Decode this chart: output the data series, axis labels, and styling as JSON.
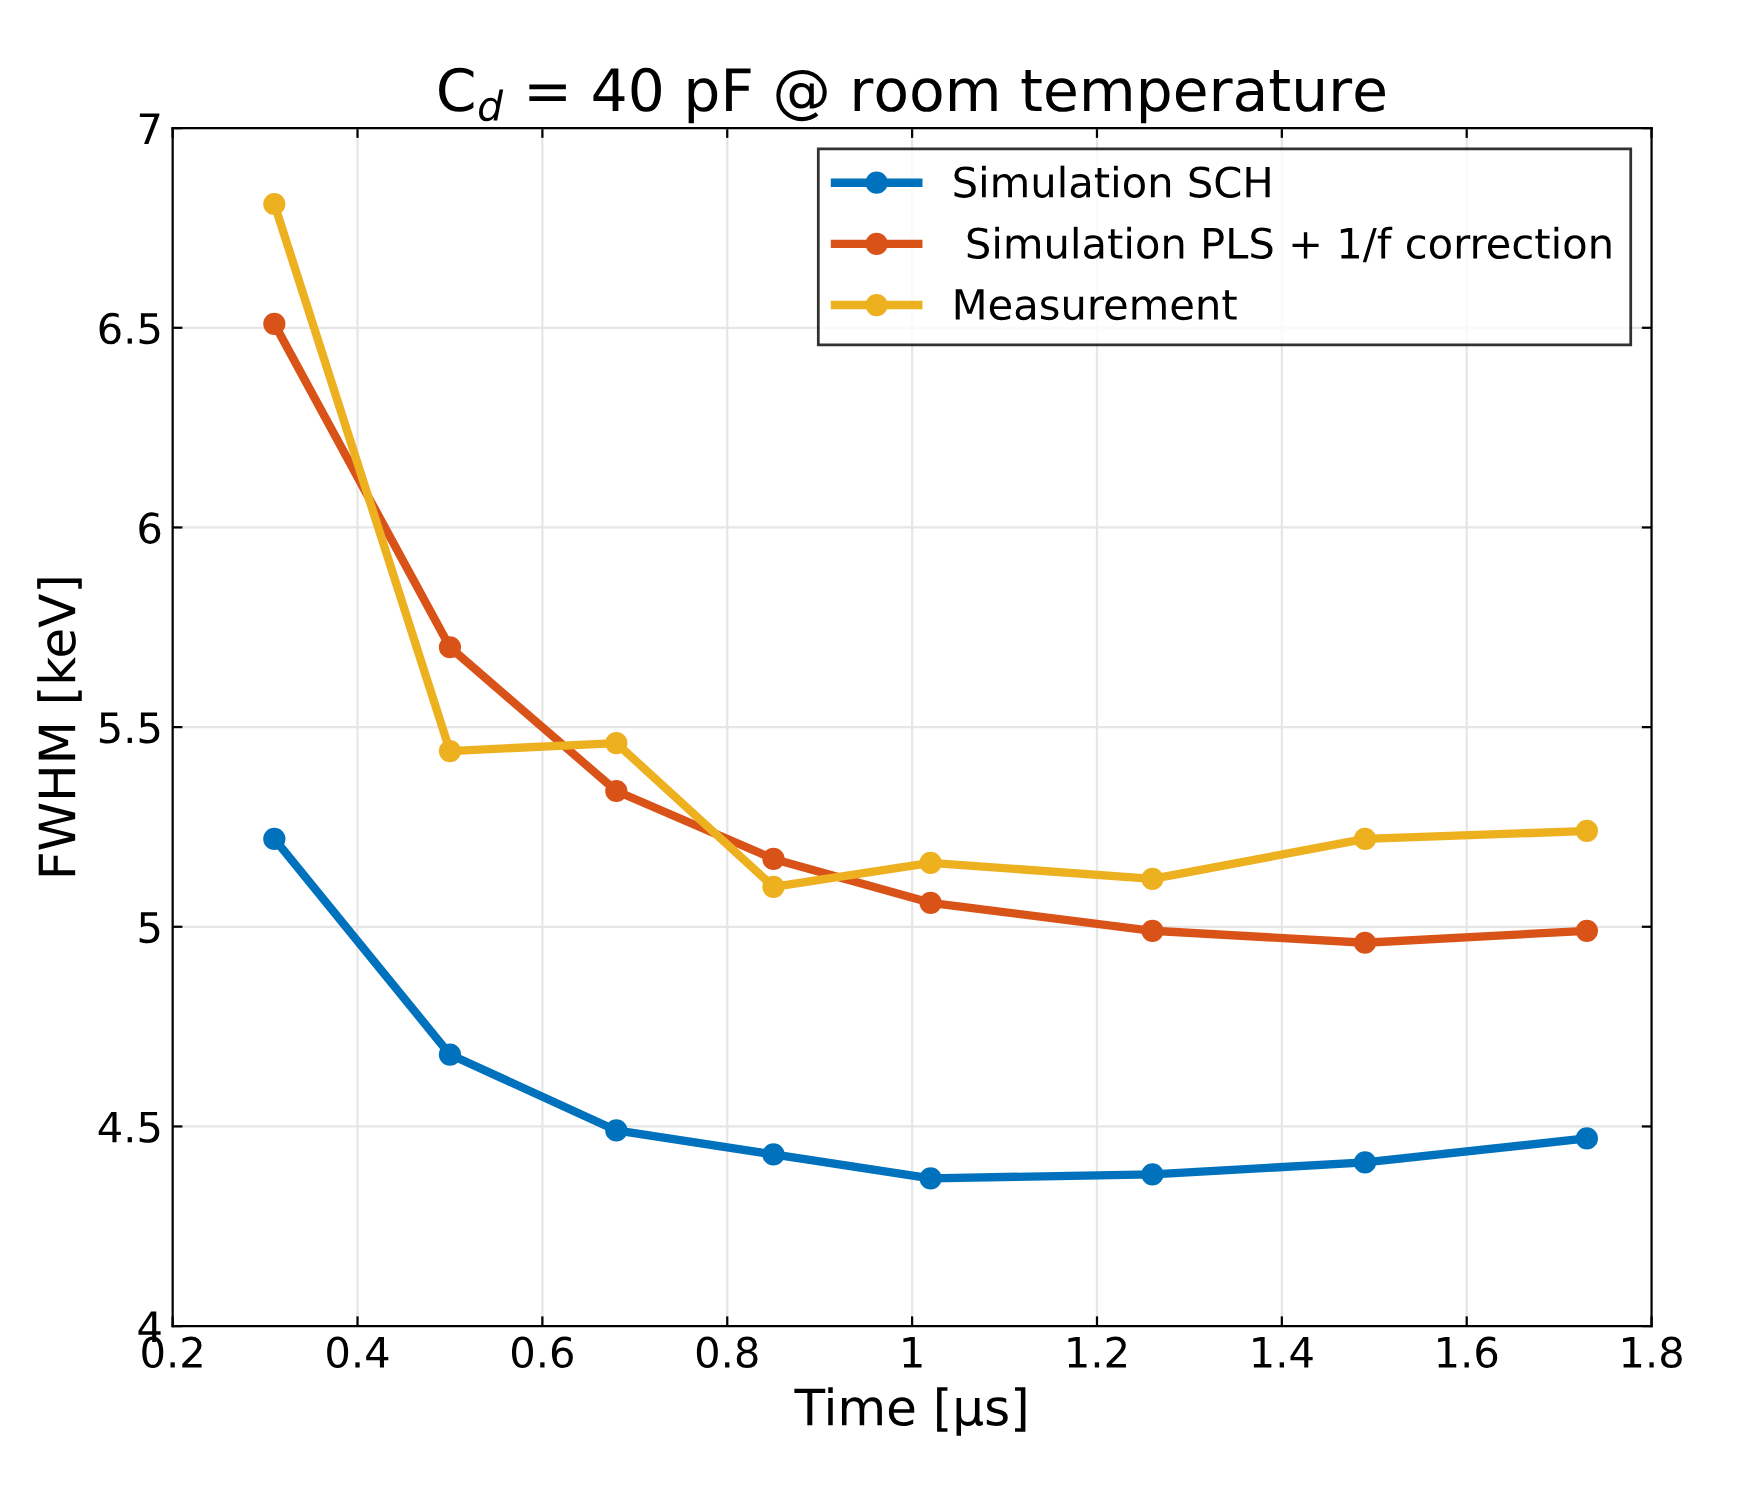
{
  "chart_data": {
    "type": "line",
    "title": "C$_{d}$ = 40 pF @ room temperature",
    "xlabel": "Time [μs]",
    "ylabel": "FWHM [keV]",
    "x": [
      0.31,
      0.5,
      0.68,
      0.85,
      1.02,
      1.26,
      1.49,
      1.73
    ],
    "series": [
      {
        "name": "Simulation SCH",
        "color": "#0072bd",
        "values": [
          5.22,
          4.68,
          4.49,
          4.43,
          4.37,
          4.38,
          4.41,
          4.47
        ]
      },
      {
        "name": " Simulation PLS + 1/f correction",
        "color": "#d95319",
        "values": [
          6.51,
          5.7,
          5.34,
          5.17,
          5.06,
          4.99,
          4.96,
          4.99
        ]
      },
      {
        "name": "Measurement",
        "color": "#edb120",
        "values": [
          6.81,
          5.44,
          5.46,
          5.1,
          5.16,
          5.12,
          5.22,
          5.24
        ]
      }
    ],
    "xlim": [
      0.2,
      1.8
    ],
    "xticks": [
      0.2,
      0.4,
      0.6,
      0.8,
      1,
      1.2,
      1.4,
      1.6,
      1.8
    ],
    "ylim": [
      4,
      7
    ],
    "yticks": [
      4,
      4.5,
      5,
      5.5,
      6,
      6.5,
      7
    ],
    "grid": true,
    "legend": "top right",
    "marker": "circle",
    "line_style": "solid"
  }
}
